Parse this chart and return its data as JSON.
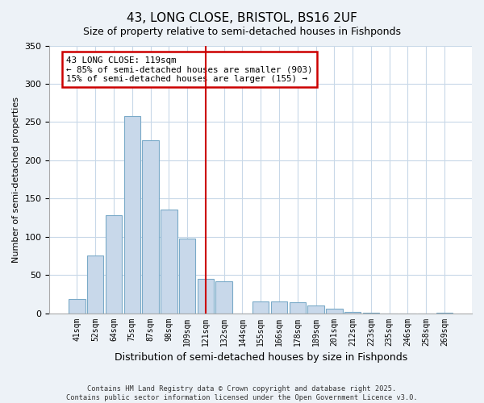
{
  "title": "43, LONG CLOSE, BRISTOL, BS16 2UF",
  "subtitle": "Size of property relative to semi-detached houses in Fishponds",
  "xlabel": "Distribution of semi-detached houses by size in Fishponds",
  "ylabel": "Number of semi-detached properties",
  "bar_labels": [
    "41sqm",
    "52sqm",
    "64sqm",
    "75sqm",
    "87sqm",
    "98sqm",
    "109sqm",
    "121sqm",
    "132sqm",
    "144sqm",
    "155sqm",
    "166sqm",
    "178sqm",
    "189sqm",
    "201sqm",
    "212sqm",
    "223sqm",
    "235sqm",
    "246sqm",
    "258sqm",
    "269sqm"
  ],
  "bar_values": [
    19,
    75,
    128,
    258,
    226,
    135,
    98,
    45,
    42,
    0,
    15,
    15,
    14,
    10,
    6,
    2,
    1,
    0,
    0,
    0,
    1
  ],
  "bar_color": "#c8d8ea",
  "bar_edge_color": "#7aaac8",
  "ylim": [
    0,
    350
  ],
  "yticks": [
    0,
    50,
    100,
    150,
    200,
    250,
    300,
    350
  ],
  "vline_index": 7,
  "vline_color": "#cc0000",
  "box_text_line1": "43 LONG CLOSE: 119sqm",
  "box_text_line2": "← 85% of semi-detached houses are smaller (903)",
  "box_text_line3": "15% of semi-detached houses are larger (155) →",
  "box_color": "#cc0000",
  "footnote1": "Contains HM Land Registry data © Crown copyright and database right 2025.",
  "footnote2": "Contains public sector information licensed under the Open Government Licence v3.0.",
  "background_color": "#edf2f7",
  "plot_background": "#ffffff",
  "grid_color": "#c8d8e8"
}
